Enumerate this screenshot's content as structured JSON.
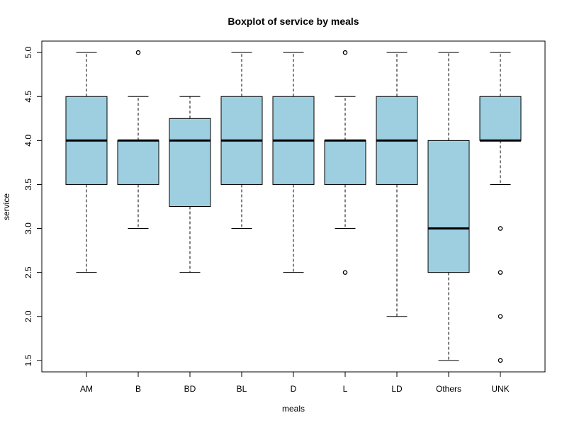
{
  "chart_data": {
    "type": "boxplot",
    "title": "Boxplot of service by meals",
    "xlabel": "meals",
    "ylabel": "service",
    "ylim": [
      1.37,
      5.13
    ],
    "yticks": [
      "1.5",
      "2.0",
      "2.5",
      "3.0",
      "3.5",
      "4.0",
      "4.5",
      "5.0"
    ],
    "categories": [
      "AM",
      "B",
      "BD",
      "BL",
      "D",
      "L",
      "LD",
      "Others",
      "UNK"
    ],
    "box_color": "#9ECFE1",
    "boxes": [
      {
        "category": "AM",
        "whisker_low": 2.5,
        "q1": 3.5,
        "median": 4.0,
        "q3": 4.5,
        "whisker_high": 5.0,
        "outliers": []
      },
      {
        "category": "B",
        "whisker_low": 3.0,
        "q1": 3.5,
        "median": 4.0,
        "q3": 4.0,
        "whisker_high": 4.5,
        "outliers": [
          5.0
        ]
      },
      {
        "category": "BD",
        "whisker_low": 2.5,
        "q1": 3.25,
        "median": 4.0,
        "q3": 4.25,
        "whisker_high": 4.5,
        "outliers": []
      },
      {
        "category": "BL",
        "whisker_low": 3.0,
        "q1": 3.5,
        "median": 4.0,
        "q3": 4.5,
        "whisker_high": 5.0,
        "outliers": []
      },
      {
        "category": "D",
        "whisker_low": 2.5,
        "q1": 3.5,
        "median": 4.0,
        "q3": 4.5,
        "whisker_high": 5.0,
        "outliers": []
      },
      {
        "category": "L",
        "whisker_low": 3.0,
        "q1": 3.5,
        "median": 4.0,
        "q3": 4.0,
        "whisker_high": 4.5,
        "outliers": [
          2.5,
          5.0
        ]
      },
      {
        "category": "LD",
        "whisker_low": 2.0,
        "q1": 3.5,
        "median": 4.0,
        "q3": 4.5,
        "whisker_high": 5.0,
        "outliers": []
      },
      {
        "category": "Others",
        "whisker_low": 1.5,
        "q1": 2.5,
        "median": 3.0,
        "q3": 4.0,
        "whisker_high": 5.0,
        "outliers": []
      },
      {
        "category": "UNK",
        "whisker_low": 3.5,
        "q1": 4.0,
        "median": 4.0,
        "q3": 4.5,
        "whisker_high": 5.0,
        "outliers": [
          1.5,
          2.0,
          2.5,
          3.0
        ]
      }
    ]
  }
}
